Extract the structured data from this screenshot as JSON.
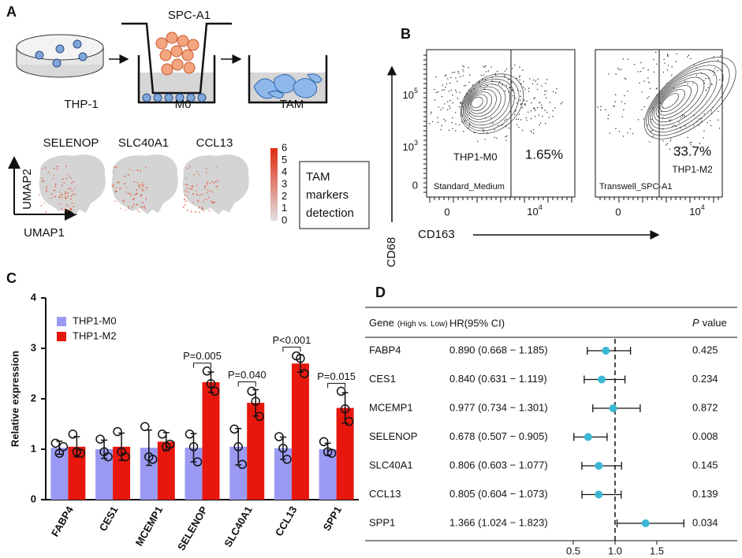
{
  "panel_labels": [
    "A",
    "B",
    "C",
    "D"
  ],
  "panel_a": {
    "cell_line": "SPC-A1",
    "steps": [
      "THP-1",
      "M0",
      "TAM"
    ],
    "genes": [
      "SELENOP",
      "SLC40A1",
      "CCL13"
    ],
    "x_axis": "UMAP1",
    "y_axis": "UMAP2",
    "colorbar_ticks": [
      0,
      1,
      2,
      3,
      4,
      5,
      6
    ],
    "box_text": [
      "TAM",
      "markers",
      "detection"
    ]
  },
  "panel_b": {
    "y_axis": "CD68",
    "x_axis": "CD163",
    "yticks": [
      {
        "base": "10",
        "exp": "5"
      },
      {
        "base": "10",
        "exp": "3"
      },
      "0"
    ],
    "xticks": [
      "0",
      {
        "base": "10",
        "exp": "4"
      }
    ],
    "plots": [
      {
        "condition": "Standard_Medium",
        "population": "THP1-M0",
        "percent": "1.65%"
      },
      {
        "condition": "Transwell_SPC-A1",
        "population": "THP1-M2",
        "percent": "33.7%"
      }
    ]
  },
  "chart_data": [
    {
      "type": "bar",
      "ylabel": "Relative expression",
      "categories": [
        "FABP4",
        "CES1",
        "MCEMP1",
        "SELENOP",
        "SLC40A1",
        "CCL13",
        "SPP1"
      ],
      "ylim": [
        0,
        4
      ],
      "yticks": [
        0,
        1,
        2,
        3,
        4
      ],
      "legend": "upper left",
      "series": [
        {
          "name": "THP1-M0",
          "color": "#9a9af3",
          "values": [
            1.03,
            1.0,
            1.03,
            1.03,
            1.05,
            1.02,
            1.0
          ],
          "errors": [
            0.13,
            0.18,
            0.35,
            0.28,
            0.36,
            0.22,
            0.12
          ],
          "points": [
            [
              1.12,
              0.92,
              1.05
            ],
            [
              1.2,
              0.95,
              0.85
            ],
            [
              1.45,
              0.85,
              0.8
            ],
            [
              1.3,
              1.05,
              0.75
            ],
            [
              1.4,
              1.05,
              0.7
            ],
            [
              1.25,
              1.02,
              0.8
            ],
            [
              1.15,
              0.95,
              0.92
            ]
          ]
        },
        {
          "name": "THP1-M2",
          "color": "#e8170e",
          "values": [
            1.05,
            1.05,
            1.15,
            2.33,
            1.92,
            2.7,
            1.82
          ],
          "errors": [
            0.2,
            0.27,
            0.18,
            0.2,
            0.26,
            0.17,
            0.3
          ],
          "points": [
            [
              1.3,
              0.95,
              0.92
            ],
            [
              1.35,
              0.95,
              0.85
            ],
            [
              1.3,
              1.05,
              1.1
            ],
            [
              2.55,
              2.3,
              2.15
            ],
            [
              2.15,
              1.95,
              1.65
            ],
            [
              2.85,
              2.8,
              2.5
            ],
            [
              2.15,
              1.8,
              1.55
            ]
          ]
        }
      ],
      "annotations": [
        null,
        null,
        null,
        "P=0.005",
        "P=0.040",
        "P<0.001",
        "P=0.015"
      ]
    },
    {
      "type": "forest",
      "gene_header": "Gene",
      "gene_header_note": "(High vs. Low)",
      "hr_header": "HR(95% CI)",
      "p_header_symbol": "P",
      "p_header": "value",
      "categories": [
        "FABP4",
        "CES1",
        "MCEMP1",
        "SELENOP",
        "SLC40A1",
        "CCL13",
        "SPP1"
      ],
      "values": [
        0.89,
        0.84,
        0.977,
        0.678,
        0.806,
        0.805,
        1.366
      ],
      "lower": [
        0.668,
        0.631,
        0.734,
        0.507,
        0.603,
        0.604,
        1.024
      ],
      "upper": [
        1.185,
        1.119,
        1.301,
        0.905,
        1.077,
        1.073,
        1.823
      ],
      "value_labels": [
        "0.890 (0.668 − 1.185)",
        "0.840 (0.631 − 1.119)",
        "0.977 (0.734 − 1.301)",
        "0.678 (0.507 − 0.905)",
        "0.806 (0.603 − 1.077)",
        "0.805 (0.604 − 1.073)",
        "1.366 (1.024 − 1.823)"
      ],
      "pvalues": [
        0.425,
        0.234,
        0.872,
        0.008,
        0.145,
        0.139,
        0.034
      ],
      "reference": 1,
      "xlim": [
        0.3,
        1.9
      ],
      "xticks": [
        0.5,
        {
          "value": 1,
          "label": "1.0"
        },
        1.5
      ],
      "color": "#3ab7d3"
    }
  ]
}
